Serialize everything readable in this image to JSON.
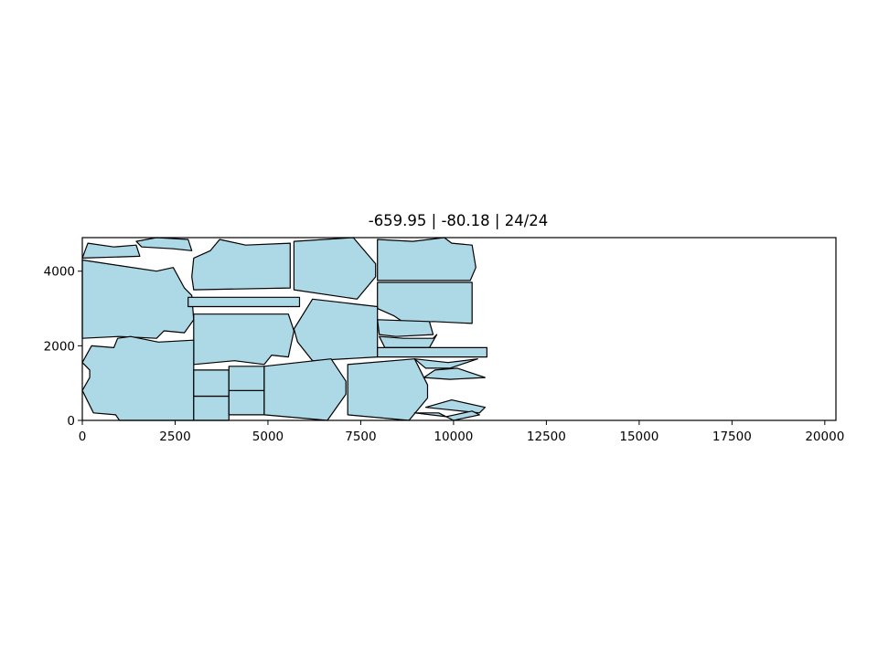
{
  "chart_data": {
    "type": "polygon-layout",
    "title": "-659.95 | -80.18 | 24/24",
    "xlabel": "",
    "ylabel": "",
    "xlim": [
      0,
      20300
    ],
    "ylim": [
      0,
      4900
    ],
    "x_ticks": [
      0,
      2500,
      5000,
      7500,
      10000,
      12500,
      15000,
      17500,
      20000
    ],
    "y_ticks": [
      0,
      2000,
      4000
    ],
    "grid": false,
    "colors": {
      "piece_fill": "#add8e6",
      "piece_edge": "#000000"
    },
    "pieces": [
      {
        "id": 1,
        "points": [
          [
            0,
            4350
          ],
          [
            1550,
            4400
          ],
          [
            1450,
            4700
          ],
          [
            850,
            4650
          ],
          [
            150,
            4750
          ]
        ]
      },
      {
        "id": 2,
        "points": [
          [
            1450,
            4800
          ],
          [
            2000,
            4900
          ],
          [
            2850,
            4850
          ],
          [
            2950,
            4550
          ],
          [
            2450,
            4600
          ],
          [
            1600,
            4650
          ]
        ]
      },
      {
        "id": 3,
        "points": [
          [
            0,
            2200
          ],
          [
            1000,
            2250
          ],
          [
            2000,
            2200
          ],
          [
            2200,
            2400
          ],
          [
            2750,
            2350
          ],
          [
            3000,
            2700
          ],
          [
            2950,
            3350
          ],
          [
            2750,
            3550
          ],
          [
            2450,
            4100
          ],
          [
            2000,
            4000
          ],
          [
            1000,
            4150
          ],
          [
            0,
            4300
          ]
        ]
      },
      {
        "id": 4,
        "points": [
          [
            2950,
            3850
          ],
          [
            3000,
            4350
          ],
          [
            3450,
            4550
          ],
          [
            3700,
            4850
          ],
          [
            4400,
            4700
          ],
          [
            5600,
            4750
          ],
          [
            5600,
            3550
          ],
          [
            3000,
            3500
          ]
        ]
      },
      {
        "id": 5,
        "points": [
          [
            5700,
            4800
          ],
          [
            7300,
            4900
          ],
          [
            7900,
            4200
          ],
          [
            7900,
            3850
          ],
          [
            7400,
            3250
          ],
          [
            5700,
            3500
          ]
        ]
      },
      {
        "id": 6,
        "points": [
          [
            7950,
            4850
          ],
          [
            8900,
            4800
          ],
          [
            9750,
            4900
          ],
          [
            9950,
            4750
          ],
          [
            10500,
            4700
          ],
          [
            10600,
            4100
          ],
          [
            10450,
            3750
          ],
          [
            7950,
            3750
          ]
        ]
      },
      {
        "id": 7,
        "points": [
          [
            2850,
            3050
          ],
          [
            5850,
            3050
          ],
          [
            5850,
            3300
          ],
          [
            2850,
            3300
          ]
        ]
      },
      {
        "id": 8,
        "points": [
          [
            7950,
            3700
          ],
          [
            10500,
            3700
          ],
          [
            10500,
            2600
          ],
          [
            9450,
            2650
          ],
          [
            8700,
            2600
          ],
          [
            8400,
            2800
          ],
          [
            7950,
            3000
          ]
        ]
      },
      {
        "id": 9,
        "points": [
          [
            3000,
            2850
          ],
          [
            5550,
            2850
          ],
          [
            5700,
            2400
          ],
          [
            5550,
            1700
          ],
          [
            5100,
            1750
          ],
          [
            4900,
            1500
          ],
          [
            4100,
            1600
          ],
          [
            3000,
            1500
          ]
        ]
      },
      {
        "id": 10,
        "points": [
          [
            5700,
            2450
          ],
          [
            6200,
            3250
          ],
          [
            7950,
            3050
          ],
          [
            7950,
            1700
          ],
          [
            6200,
            1600
          ],
          [
            5800,
            2100
          ]
        ]
      },
      {
        "id": 11,
        "points": [
          [
            7950,
            2700
          ],
          [
            9350,
            2650
          ],
          [
            9450,
            2300
          ],
          [
            8450,
            2250
          ],
          [
            8000,
            2300
          ]
        ]
      },
      {
        "id": 12,
        "points": [
          [
            8000,
            2250
          ],
          [
            8650,
            2200
          ],
          [
            9450,
            2200
          ],
          [
            9550,
            2300
          ],
          [
            9350,
            1950
          ],
          [
            8150,
            1950
          ]
        ]
      },
      {
        "id": 13,
        "points": [
          [
            7950,
            1950
          ],
          [
            10900,
            1950
          ],
          [
            10900,
            1700
          ],
          [
            7950,
            1700
          ]
        ]
      },
      {
        "id": 14,
        "points": [
          [
            0,
            800
          ],
          [
            200,
            1150
          ],
          [
            200,
            1350
          ],
          [
            0,
            1550
          ],
          [
            250,
            2000
          ],
          [
            850,
            1950
          ],
          [
            950,
            2200
          ],
          [
            1300,
            2250
          ],
          [
            2050,
            2100
          ],
          [
            3000,
            2150
          ],
          [
            3000,
            0
          ],
          [
            1000,
            0
          ],
          [
            900,
            150
          ],
          [
            300,
            200
          ]
        ]
      },
      {
        "id": 15,
        "points": [
          [
            3000,
            0
          ],
          [
            3950,
            0
          ],
          [
            3950,
            650
          ],
          [
            3000,
            650
          ]
        ]
      },
      {
        "id": 16,
        "points": [
          [
            3000,
            650
          ],
          [
            3950,
            650
          ],
          [
            3950,
            1350
          ],
          [
            3000,
            1350
          ]
        ]
      },
      {
        "id": 17,
        "points": [
          [
            3950,
            150
          ],
          [
            4900,
            150
          ],
          [
            4900,
            800
          ],
          [
            3950,
            800
          ]
        ]
      },
      {
        "id": 18,
        "points": [
          [
            3950,
            800
          ],
          [
            4900,
            800
          ],
          [
            4900,
            1450
          ],
          [
            3950,
            1450
          ]
        ]
      },
      {
        "id": 19,
        "points": [
          [
            4900,
            150
          ],
          [
            6600,
            0
          ],
          [
            7100,
            700
          ],
          [
            7100,
            1050
          ],
          [
            6700,
            1650
          ],
          [
            4900,
            1450
          ]
        ]
      },
      {
        "id": 20,
        "points": [
          [
            7150,
            150
          ],
          [
            8800,
            0
          ],
          [
            9300,
            600
          ],
          [
            9300,
            950
          ],
          [
            8950,
            1650
          ],
          [
            7150,
            1500
          ]
        ]
      },
      {
        "id": 21,
        "points": [
          [
            8950,
            1650
          ],
          [
            9850,
            1550
          ],
          [
            10650,
            1650
          ],
          [
            9900,
            1400
          ],
          [
            9250,
            1400
          ]
        ]
      },
      {
        "id": 22,
        "points": [
          [
            9200,
            1150
          ],
          [
            9900,
            1100
          ],
          [
            10850,
            1150
          ],
          [
            10100,
            1400
          ],
          [
            9500,
            1350
          ]
        ]
      },
      {
        "id": 23,
        "points": [
          [
            9250,
            350
          ],
          [
            9950,
            550
          ],
          [
            10850,
            350
          ],
          [
            10700,
            200
          ],
          [
            9750,
            300
          ]
        ]
      },
      {
        "id": 24,
        "points": [
          [
            8950,
            200
          ],
          [
            9600,
            200
          ],
          [
            10000,
            0
          ],
          [
            10700,
            150
          ],
          [
            10500,
            250
          ],
          [
            9800,
            100
          ]
        ]
      }
    ]
  }
}
